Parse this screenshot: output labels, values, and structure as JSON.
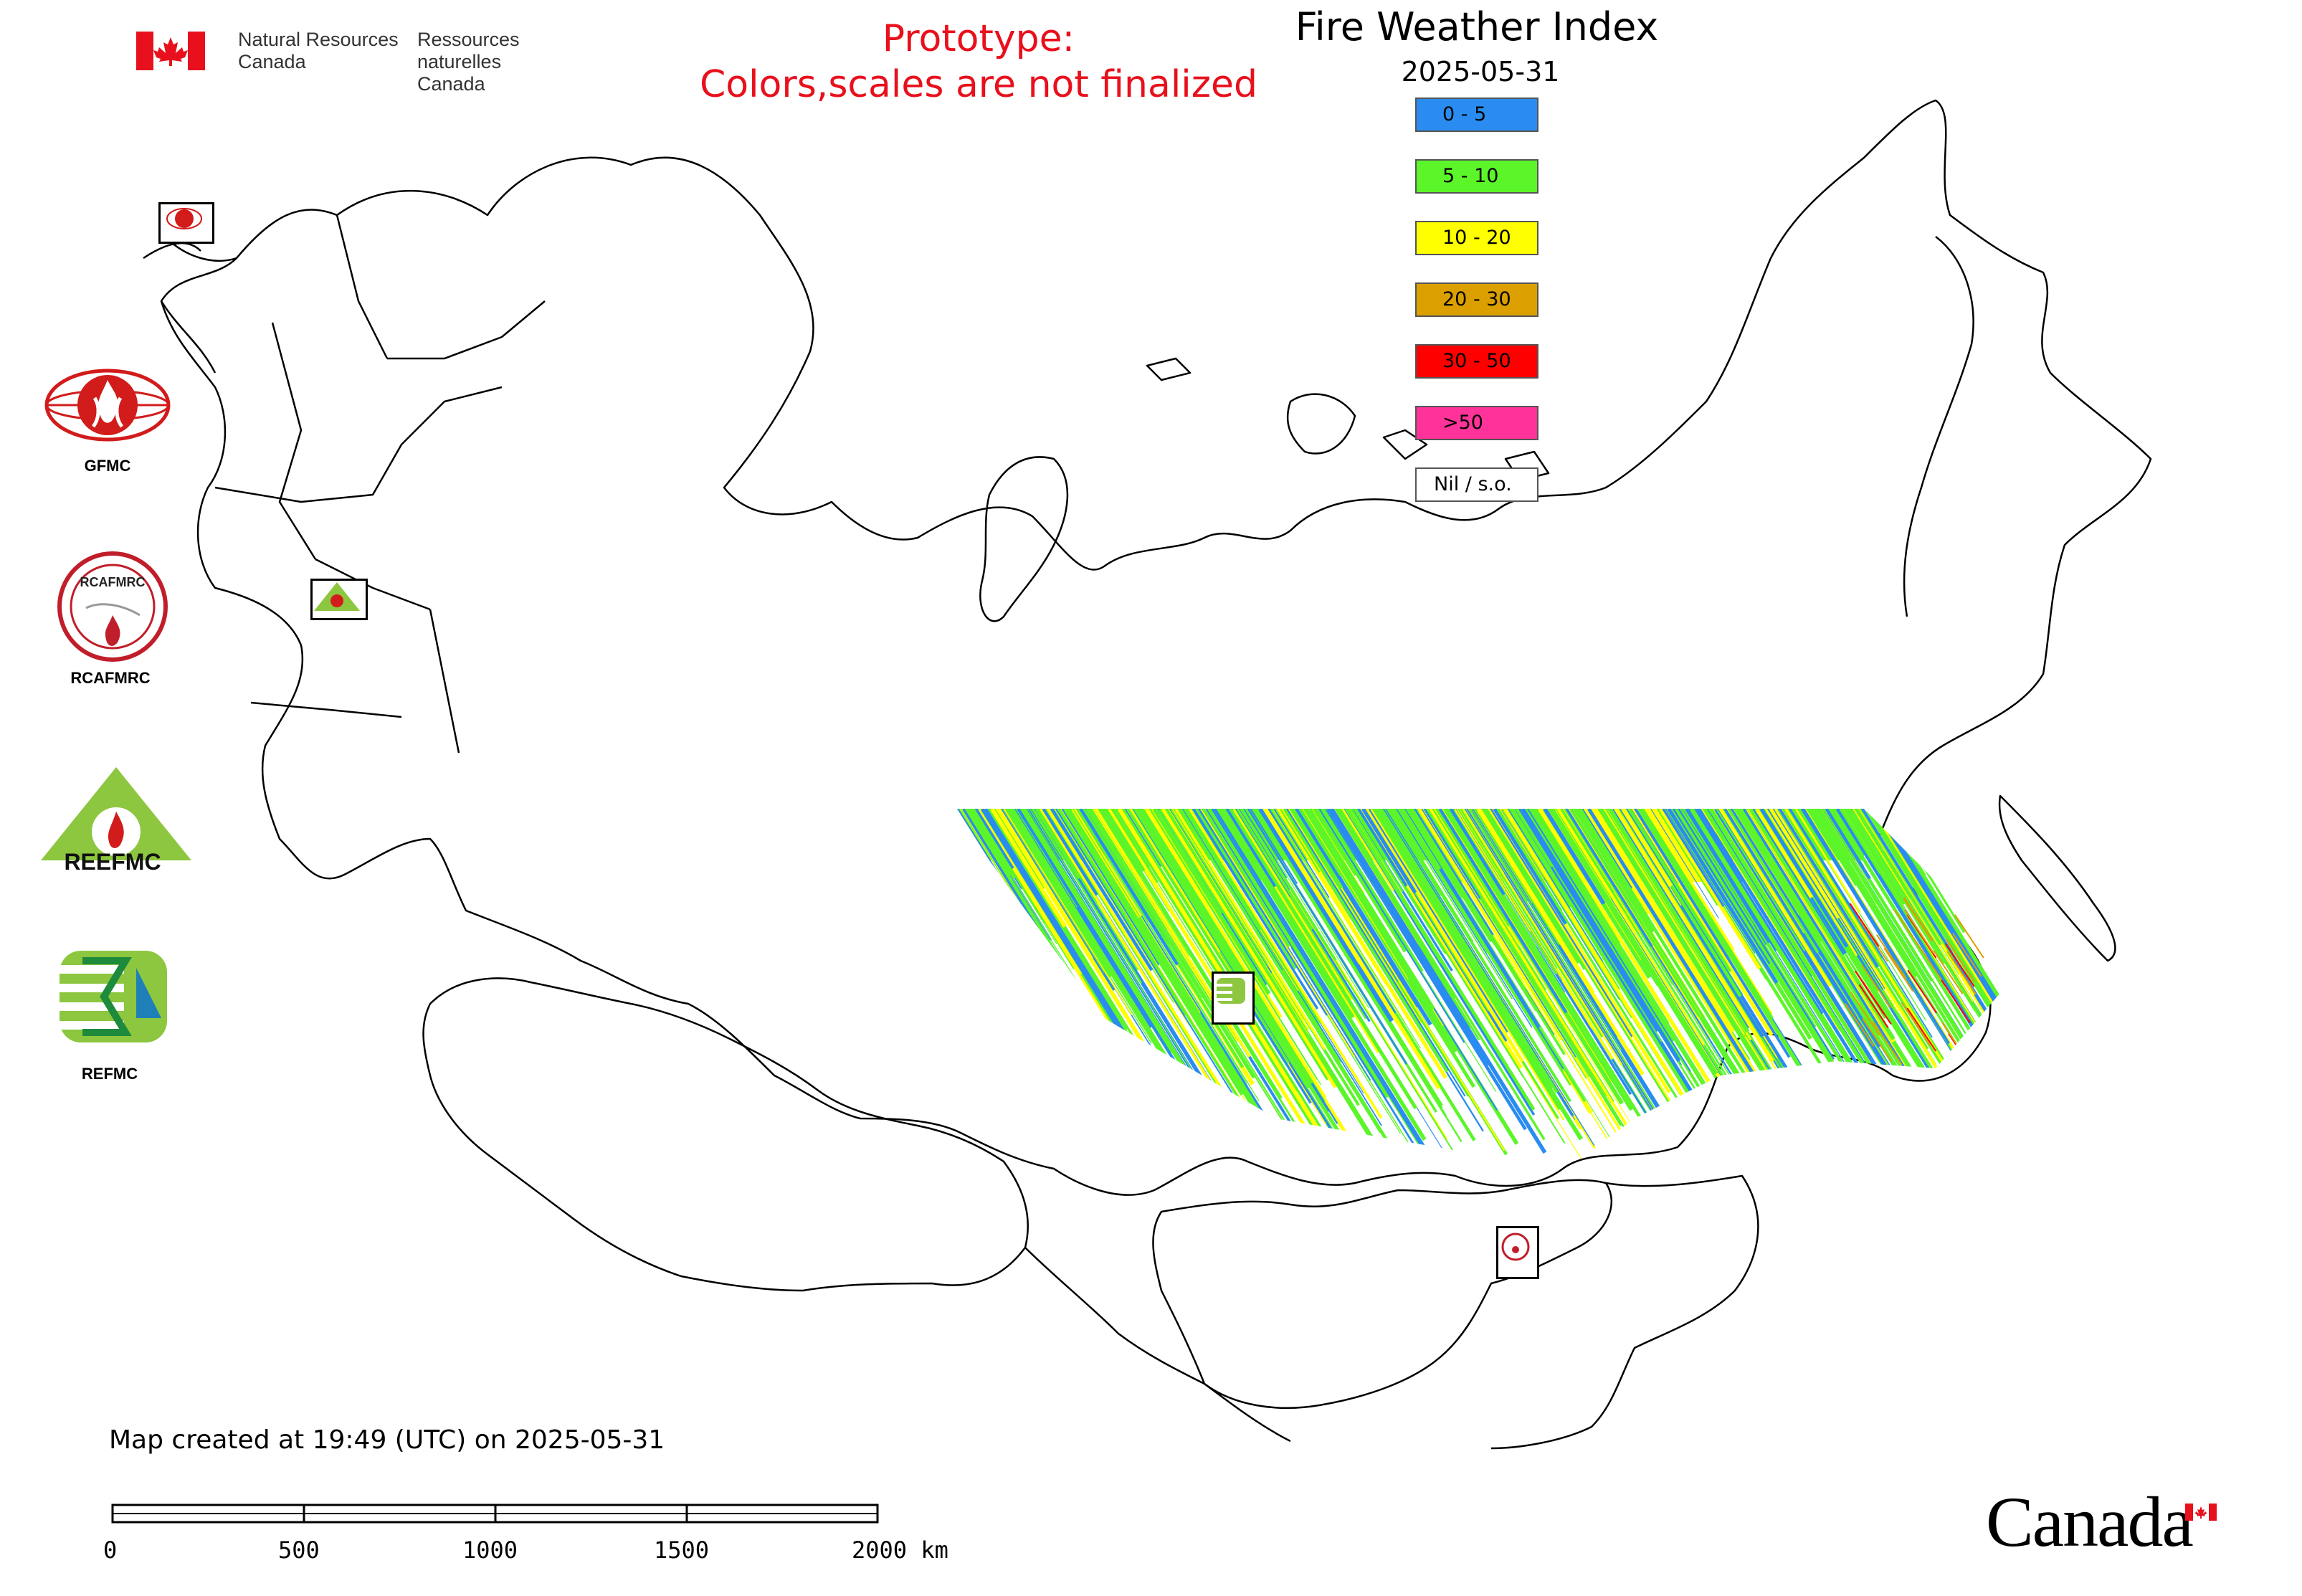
{
  "header": {
    "dept_en_line1": "Natural Resources",
    "dept_en_line2": "Canada",
    "dept_fr_line1": "Ressources naturelles",
    "dept_fr_line2": "Canada"
  },
  "notice": {
    "line1": "Prototype:",
    "line2": "Colors,scales are not finalized",
    "color": "#e8101c"
  },
  "map": {
    "title": "Fire Weather Index",
    "date": "2025-05-31"
  },
  "legend": [
    {
      "label": "0 - 5",
      "color": "#2a8cf0"
    },
    {
      "label": "5 - 10",
      "color": "#5cf52a"
    },
    {
      "label": "10 - 20",
      "color": "#ffff00"
    },
    {
      "label": "20 - 30",
      "color": "#dba000"
    },
    {
      "label": "30 - 50",
      "color": "#ff0000"
    },
    {
      "label": ">50",
      "color": "#ff3399"
    },
    {
      "label": "Nil / s.o.",
      "color": "#ffffff"
    }
  ],
  "organizations": [
    {
      "label": "GFMC",
      "icon": "gfmc-logo-icon"
    },
    {
      "label": "RCAFMRC",
      "icon": "rcafmrc-logo-icon"
    },
    {
      "label": "REEFMC",
      "icon": "reefmc-logo-icon"
    },
    {
      "label": "REFMC",
      "icon": "refmc-logo-icon"
    }
  ],
  "logo_text": {
    "rcafmrc_inner": "RCAFMRC",
    "reefmc_word": "REEFMC"
  },
  "footer": {
    "created": "Map created at 19:49 (UTC) on 2025-05-31",
    "scale_ticks": [
      "0",
      "500",
      "1000",
      "1500",
      "2000 km"
    ],
    "wordmark": "Canada"
  }
}
